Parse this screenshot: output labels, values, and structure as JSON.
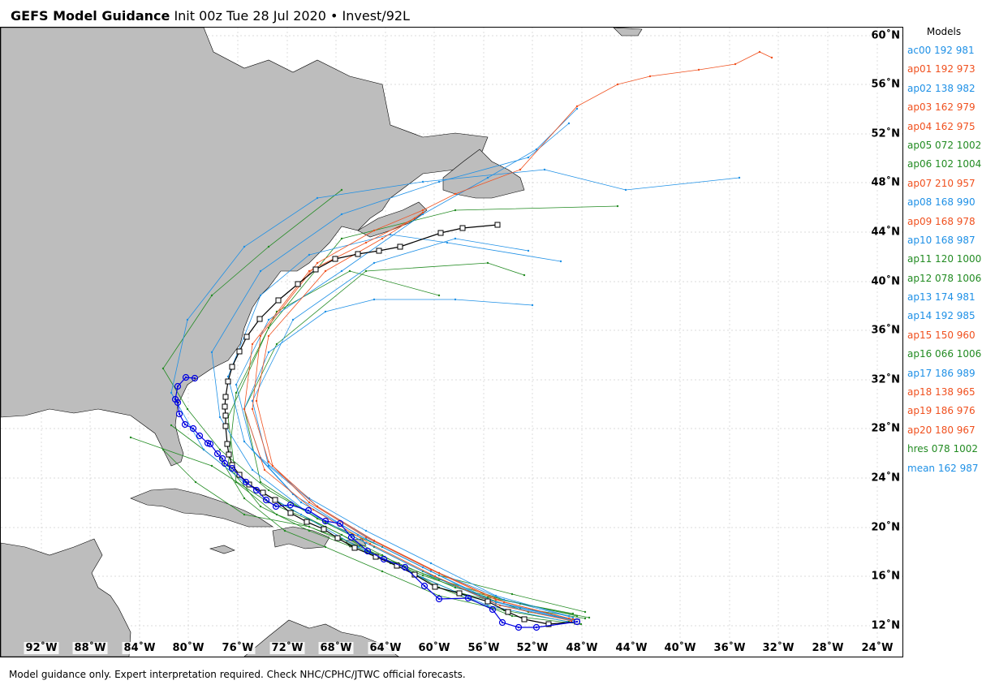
{
  "title": {
    "bold": "GEFS Model Guidance",
    "rest": "Init 00z Tue 28 Jul 2020 • Invest/92L"
  },
  "map": {
    "lat_labels": [
      "60˚N",
      "56˚N",
      "52˚N",
      "48˚N",
      "44˚N",
      "40˚N",
      "36˚N",
      "32˚N",
      "28˚N",
      "24˚N",
      "20˚N",
      "16˚N",
      "12˚N"
    ],
    "lon_labels": [
      "92˚W",
      "88˚W",
      "84˚W",
      "80˚W",
      "76˚W",
      "72˚W",
      "68˚W",
      "64˚W",
      "60˚W",
      "56˚W",
      "52˚W",
      "48˚W",
      "44˚W",
      "40˚W",
      "36˚W",
      "32˚W",
      "28˚W",
      "24˚W"
    ],
    "colors": {
      "land": "#bdbdbd",
      "water": "#ffffff",
      "blue_track": "#1e90e6",
      "orange_track": "#f0501e",
      "green_track": "#228b22",
      "mean_track": "#000000",
      "hres_marker": "#0000e0"
    }
  },
  "legend": {
    "title": "Models",
    "items": [
      {
        "label": "ac00 192 981",
        "color": "#1e90e6"
      },
      {
        "label": "ap01 192 973",
        "color": "#f0501e"
      },
      {
        "label": "ap02 138 982",
        "color": "#1e90e6"
      },
      {
        "label": "ap03 162 979",
        "color": "#f0501e"
      },
      {
        "label": "ap04 162 975",
        "color": "#f0501e"
      },
      {
        "label": "ap05 072 1002",
        "color": "#228b22"
      },
      {
        "label": "ap06 102 1004",
        "color": "#228b22"
      },
      {
        "label": "ap07 210 957",
        "color": "#f0501e"
      },
      {
        "label": "ap08 168 990",
        "color": "#1e90e6"
      },
      {
        "label": "ap09 168 978",
        "color": "#f0501e"
      },
      {
        "label": "ap10 168 987",
        "color": "#1e90e6"
      },
      {
        "label": "ap11 120 1000",
        "color": "#228b22"
      },
      {
        "label": "ap12 078 1006",
        "color": "#228b22"
      },
      {
        "label": "ap13 174 981",
        "color": "#1e90e6"
      },
      {
        "label": "ap14 192 985",
        "color": "#1e90e6"
      },
      {
        "label": "ap15 150 960",
        "color": "#f0501e"
      },
      {
        "label": "ap16 066 1006",
        "color": "#228b22"
      },
      {
        "label": "ap17 186 989",
        "color": "#1e90e6"
      },
      {
        "label": "ap18 138 965",
        "color": "#f0501e"
      },
      {
        "label": "ap19 186 976",
        "color": "#f0501e"
      },
      {
        "label": "ap20 180 967",
        "color": "#f0501e"
      },
      {
        "label": "hres 078 1002",
        "color": "#228b22"
      },
      {
        "label": "mean 162 987",
        "color": "#1e90e6"
      }
    ]
  },
  "footer": "Model guidance only. Expert interpretation required. Check NHC/CPHC/JTWC official forecasts."
}
